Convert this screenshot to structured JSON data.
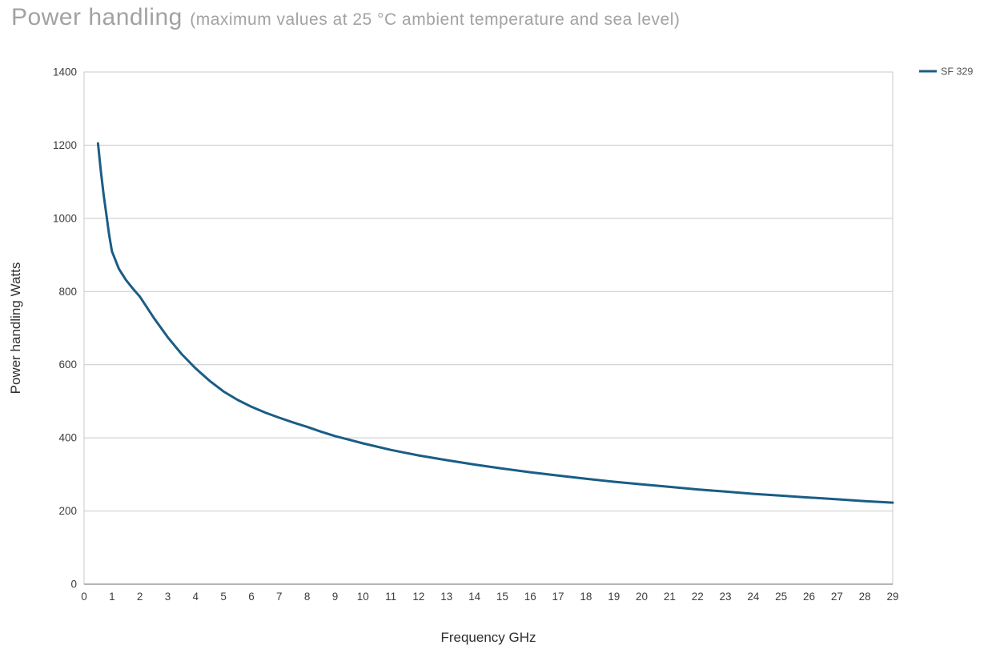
{
  "page": {
    "title": "Power handling",
    "subtitle": "(maximum values at 25 °C ambient temperature and sea level)"
  },
  "chart_data": {
    "type": "line",
    "title": "Power handling (maximum values at 25 °C ambient temperature and sea level)",
    "xlabel": "Frequency GHz",
    "ylabel": "Power handling Watts",
    "xlim": [
      0,
      29
    ],
    "ylim": [
      0,
      1400
    ],
    "x_ticks": [
      0,
      1,
      2,
      3,
      4,
      5,
      6,
      7,
      8,
      9,
      10,
      11,
      12,
      13,
      14,
      15,
      16,
      17,
      18,
      19,
      20,
      21,
      22,
      23,
      24,
      25,
      26,
      27,
      28,
      29
    ],
    "y_ticks": [
      0,
      200,
      400,
      600,
      800,
      1000,
      1200,
      1400
    ],
    "grid": "horizontal",
    "legend_position": "top-right-outside",
    "colors": {
      "line": "#1a5d86",
      "grid": "#c9c9c9",
      "axis": "#8a8a8a",
      "tick_text": "#3d3d3d",
      "legend_text": "#555555"
    },
    "series": [
      {
        "name": "SF 329",
        "color": "#1a5d86",
        "points": [
          [
            0.5,
            1205
          ],
          [
            0.6,
            1130
          ],
          [
            0.7,
            1065
          ],
          [
            0.8,
            1010
          ],
          [
            0.9,
            955
          ],
          [
            1,
            910
          ],
          [
            1.25,
            862
          ],
          [
            1.5,
            832
          ],
          [
            1.75,
            808
          ],
          [
            2,
            786
          ],
          [
            2.5,
            728
          ],
          [
            3,
            675
          ],
          [
            3.5,
            629
          ],
          [
            4,
            590
          ],
          [
            4.5,
            556
          ],
          [
            5,
            527
          ],
          [
            5.5,
            504
          ],
          [
            6,
            485
          ],
          [
            6.5,
            469
          ],
          [
            7,
            455
          ],
          [
            7.5,
            442
          ],
          [
            8,
            430
          ],
          [
            8.5,
            417
          ],
          [
            9,
            405
          ],
          [
            9.5,
            395
          ],
          [
            10,
            385
          ],
          [
            11,
            367
          ],
          [
            12,
            352
          ],
          [
            13,
            339
          ],
          [
            14,
            327
          ],
          [
            15,
            316
          ],
          [
            16,
            306
          ],
          [
            17,
            297
          ],
          [
            18,
            288
          ],
          [
            19,
            280
          ],
          [
            20,
            273
          ],
          [
            21,
            266
          ],
          [
            22,
            259
          ],
          [
            23,
            253
          ],
          [
            24,
            247
          ],
          [
            25,
            242
          ],
          [
            26,
            237
          ],
          [
            27,
            232
          ],
          [
            28,
            227
          ],
          [
            29,
            223
          ]
        ]
      }
    ]
  }
}
